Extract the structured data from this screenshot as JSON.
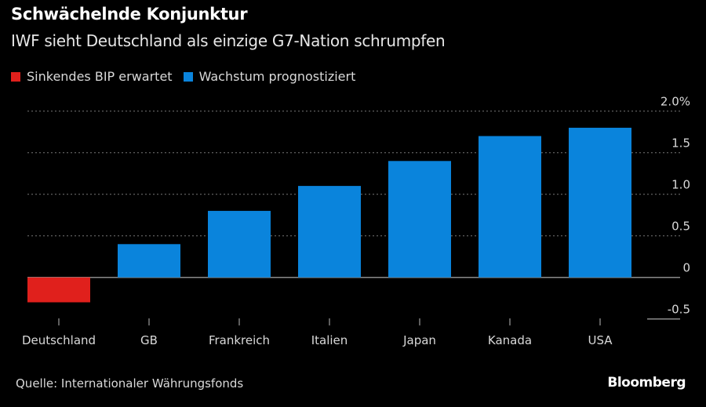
{
  "header": {
    "title": "Schwächelnde Konjunktur",
    "subtitle": "IWF sieht Deutschland als einzige G7-Nation schrumpfen"
  },
  "chart_data": {
    "type": "bar",
    "categories": [
      "Deutschland",
      "GB",
      "Frankreich",
      "Italien",
      "Japan",
      "Kanada",
      "USA"
    ],
    "series": [
      {
        "name": "Sinkendes BIP erwartet",
        "color": "#e0201c",
        "values": [
          -0.3,
          null,
          null,
          null,
          null,
          null,
          null
        ]
      },
      {
        "name": "Wachstum prognostiziert",
        "color": "#0a84dc",
        "values": [
          null,
          0.4,
          0.8,
          1.1,
          1.4,
          1.7,
          1.8
        ]
      }
    ],
    "ylim": [
      -0.5,
      2.0
    ],
    "yticks": [
      -0.5,
      0,
      0.5,
      1.0,
      1.5,
      2.0
    ],
    "ytick_labels": [
      "-0.5",
      "0",
      "0.5",
      "1.0",
      "1.5",
      "2.0%"
    ],
    "grid": true,
    "legend_position": "top-left",
    "xlabel": "",
    "ylabel": ""
  },
  "footer": {
    "source": "Quelle: Internationaler Währungsfonds",
    "logo": "Bloomberg"
  }
}
